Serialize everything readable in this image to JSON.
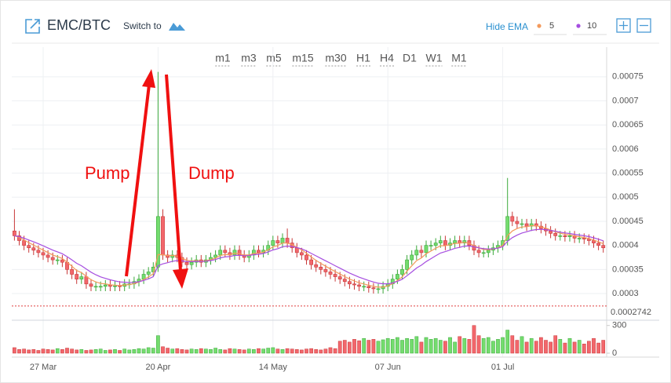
{
  "toolbar": {
    "symbol": "EMC/BTC",
    "switch": "Switch to",
    "hide_ema": "Hide EMA",
    "periods": [
      "m1",
      "m3",
      "m5",
      "m15",
      "m30",
      "H1",
      "H4",
      "D1",
      "W1",
      "M1"
    ],
    "active_period": "D1"
  },
  "chart_data": {
    "type": "candlestick",
    "categories": [
      null,
      null,
      null,
      null,
      null,
      null,
      "27 Mar",
      null,
      null,
      null,
      null,
      null,
      null,
      null,
      null,
      null,
      null,
      null,
      null,
      null,
      null,
      null,
      null,
      null,
      null,
      null,
      null,
      null,
      null,
      null,
      "20 Apr",
      null,
      null,
      null,
      null,
      null,
      null,
      null,
      null,
      null,
      null,
      null,
      null,
      null,
      null,
      null,
      null,
      null,
      null,
      null,
      null,
      null,
      null,
      null,
      "14 May",
      null,
      null,
      null,
      null,
      null,
      null,
      null,
      null,
      null,
      null,
      null,
      null,
      null,
      null,
      null,
      null,
      null,
      null,
      null,
      null,
      null,
      null,
      null,
      "07 Jun",
      null,
      null,
      null,
      null,
      null,
      null,
      null,
      null,
      null,
      null,
      null,
      null,
      null,
      null,
      null,
      null,
      null,
      null,
      null,
      null,
      null,
      null,
      null,
      "01 Jul",
      null,
      null,
      null,
      null,
      null,
      null,
      null,
      null,
      null,
      null,
      null,
      null,
      null,
      null,
      null,
      null,
      null,
      null,
      null,
      null,
      null
    ],
    "open": [
      0.00043,
      0.00042,
      0.00041,
      0.0004,
      0.000395,
      0.00039,
      0.000385,
      0.00038,
      0.000375,
      0.00037,
      0.00037,
      0.000365,
      0.00035,
      0.00034,
      0.00033,
      0.000335,
      0.00032,
      0.000315,
      0.000315,
      0.000315,
      0.000318,
      0.000315,
      0.000316,
      0.000315,
      0.00032,
      0.00032,
      0.000325,
      0.00033,
      0.00034,
      0.000345,
      0.000355,
      0.00046,
      0.00038,
      0.000375,
      0.00038,
      0.000375,
      0.000365,
      0.00036,
      0.000365,
      0.00037,
      0.000365,
      0.00037,
      0.000375,
      0.00038,
      0.00039,
      0.000385,
      0.00038,
      0.00039,
      0.00038,
      0.000375,
      0.00038,
      0.00039,
      0.000385,
      0.00039,
      0.0004,
      0.00041,
      0.000405,
      0.000415,
      0.000405,
      0.000395,
      0.000385,
      0.00038,
      0.00037,
      0.00036,
      0.000355,
      0.00035,
      0.000345,
      0.00034,
      0.000335,
      0.00033,
      0.000325,
      0.00032,
      0.000318,
      0.000315,
      0.000315,
      0.000312,
      0.00031,
      0.00031,
      0.000315,
      0.00032,
      0.00033,
      0.00034,
      0.00035,
      0.00037,
      0.00038,
      0.00039,
      0.000385,
      0.0004,
      0.0004,
      0.000405,
      0.00041,
      0.0004,
      0.000405,
      0.00041,
      0.000405,
      0.00041,
      0.0004,
      0.00039,
      0.000385,
      0.000385,
      0.00039,
      0.000395,
      0.0004,
      0.00041,
      0.00046,
      0.00045,
      0.000445,
      0.000445,
      0.00044,
      0.000445,
      0.00044,
      0.000435,
      0.00043,
      0.000425,
      0.00042,
      0.00042,
      0.000418,
      0.00042,
      0.000415,
      0.000415,
      0.000413,
      0.00041,
      0.000405,
      0.0004
    ],
    "high": [
      0.000475,
      0.00043,
      0.00042,
      0.00041,
      0.000405,
      0.0004,
      0.000395,
      0.00039,
      0.000385,
      0.00038,
      0.00038,
      0.000375,
      0.00036,
      0.00035,
      0.000345,
      0.000345,
      0.00033,
      0.000325,
      0.000325,
      0.000328,
      0.000328,
      0.000326,
      0.000326,
      0.00033,
      0.00033,
      0.000335,
      0.00034,
      0.00035,
      0.000355,
      0.000365,
      0.00076,
      0.000475,
      0.00039,
      0.00039,
      0.00039,
      0.000385,
      0.000375,
      0.000375,
      0.00038,
      0.00038,
      0.00038,
      0.000385,
      0.00039,
      0.0004,
      0.0004,
      0.000395,
      0.0004,
      0.0004,
      0.00039,
      0.00039,
      0.0004,
      0.0004,
      0.0004,
      0.00041,
      0.00042,
      0.00042,
      0.000425,
      0.000435,
      0.000415,
      0.000405,
      0.000395,
      0.00039,
      0.00038,
      0.00037,
      0.000365,
      0.00036,
      0.000355,
      0.00035,
      0.000345,
      0.00034,
      0.000335,
      0.00033,
      0.000328,
      0.000325,
      0.000325,
      0.000322,
      0.00032,
      0.000325,
      0.00033,
      0.00034,
      0.00035,
      0.00036,
      0.00038,
      0.00039,
      0.0004,
      0.0004,
      0.00041,
      0.00041,
      0.000415,
      0.00042,
      0.00042,
      0.000415,
      0.00042,
      0.00042,
      0.00042,
      0.00042,
      0.00041,
      0.0004,
      0.000395,
      0.0004,
      0.000405,
      0.00041,
      0.00042,
      0.00054,
      0.00047,
      0.00046,
      0.000455,
      0.000455,
      0.000455,
      0.000455,
      0.00045,
      0.000445,
      0.00044,
      0.000435,
      0.00043,
      0.00043,
      0.00043,
      0.00043,
      0.000425,
      0.000425,
      0.000423,
      0.00042,
      0.000415,
      0.00041
    ],
    "low": [
      0.00041,
      0.0004,
      0.00039,
      0.000385,
      0.00038,
      0.000375,
      0.00037,
      0.000365,
      0.00036,
      0.00036,
      0.000355,
      0.00034,
      0.00033,
      0.00032,
      0.00032,
      0.00031,
      0.000305,
      0.000305,
      0.000305,
      0.000305,
      0.000305,
      0.000305,
      0.000305,
      0.000305,
      0.00031,
      0.00031,
      0.000315,
      0.00032,
      0.00033,
      0.000335,
      0.000345,
      0.00037,
      0.000365,
      0.000365,
      0.000365,
      0.000355,
      0.00035,
      0.00035,
      0.000355,
      0.000355,
      0.000355,
      0.00036,
      0.000365,
      0.00037,
      0.000375,
      0.00037,
      0.00037,
      0.00037,
      0.000365,
      0.000365,
      0.00037,
      0.000375,
      0.000375,
      0.00038,
      0.00039,
      0.000395,
      0.000395,
      0.000395,
      0.000385,
      0.000375,
      0.00037,
      0.00036,
      0.00035,
      0.000345,
      0.00034,
      0.000335,
      0.00033,
      0.000325,
      0.00032,
      0.000315,
      0.00031,
      0.000308,
      0.000305,
      0.000305,
      0.000302,
      0.0003,
      0.0003,
      0.0003,
      0.000305,
      0.00031,
      0.00032,
      0.00033,
      0.00034,
      0.00036,
      0.00037,
      0.000375,
      0.000375,
      0.00039,
      0.00039,
      0.000395,
      0.00039,
      0.00039,
      0.000395,
      0.000395,
      0.000395,
      0.00039,
      0.00038,
      0.000375,
      0.000375,
      0.000375,
      0.00038,
      0.000385,
      0.00039,
      0.0004,
      0.00044,
      0.000435,
      0.000435,
      0.00043,
      0.00043,
      0.00043,
      0.000425,
      0.00042,
      0.000415,
      0.00041,
      0.00041,
      0.000408,
      0.000408,
      0.000405,
      0.000405,
      0.000403,
      0.0004,
      0.000395,
      0.00039,
      0.000385
    ],
    "close": [
      0.00042,
      0.00041,
      0.0004,
      0.000395,
      0.00039,
      0.000385,
      0.00038,
      0.000375,
      0.00037,
      0.00037,
      0.000365,
      0.00035,
      0.00034,
      0.00033,
      0.000335,
      0.00032,
      0.000315,
      0.000315,
      0.000315,
      0.000318,
      0.000315,
      0.000316,
      0.000315,
      0.00032,
      0.00032,
      0.000325,
      0.00033,
      0.00034,
      0.000345,
      0.000355,
      0.00046,
      0.00038,
      0.000375,
      0.00038,
      0.000375,
      0.000365,
      0.00036,
      0.000365,
      0.00037,
      0.000365,
      0.00037,
      0.000375,
      0.00038,
      0.00039,
      0.000385,
      0.00038,
      0.00039,
      0.00038,
      0.000375,
      0.00038,
      0.00039,
      0.000385,
      0.00039,
      0.0004,
      0.00041,
      0.000405,
      0.000415,
      0.000405,
      0.000395,
      0.000385,
      0.00038,
      0.00037,
      0.00036,
      0.000355,
      0.00035,
      0.000345,
      0.00034,
      0.000335,
      0.00033,
      0.000325,
      0.00032,
      0.000318,
      0.000315,
      0.000315,
      0.000312,
      0.00031,
      0.00031,
      0.000315,
      0.00032,
      0.00033,
      0.00034,
      0.00035,
      0.00037,
      0.00038,
      0.00039,
      0.000385,
      0.0004,
      0.0004,
      0.000405,
      0.00041,
      0.0004,
      0.000405,
      0.00041,
      0.000405,
      0.00041,
      0.0004,
      0.00039,
      0.000385,
      0.000385,
      0.00039,
      0.000395,
      0.0004,
      0.00041,
      0.00046,
      0.00045,
      0.000445,
      0.000445,
      0.00044,
      0.000445,
      0.00044,
      0.000435,
      0.00043,
      0.000425,
      0.00042,
      0.00042,
      0.000418,
      0.00042,
      0.000415,
      0.000415,
      0.000413,
      0.00041,
      0.000405,
      0.0004,
      0.000395
    ],
    "volume": [
      60,
      40,
      45,
      35,
      40,
      30,
      45,
      40,
      35,
      50,
      40,
      55,
      45,
      35,
      40,
      30,
      35,
      40,
      45,
      30,
      35,
      40,
      30,
      45,
      35,
      40,
      50,
      45,
      60,
      55,
      190,
      70,
      55,
      45,
      50,
      40,
      35,
      45,
      40,
      50,
      45,
      40,
      55,
      40,
      35,
      50,
      45,
      40,
      35,
      45,
      40,
      50,
      45,
      55,
      60,
      45,
      40,
      50,
      45,
      40,
      35,
      45,
      50,
      40,
      35,
      45,
      60,
      50,
      130,
      140,
      120,
      150,
      135,
      160,
      140,
      150,
      130,
      145,
      160,
      150,
      170,
      140,
      160,
      150,
      180,
      120,
      170,
      150,
      160,
      140,
      130,
      170,
      120,
      180,
      160,
      150,
      300,
      190,
      160,
      170,
      130,
      150,
      170,
      250,
      190,
      140,
      180,
      120,
      160,
      130,
      170,
      140,
      120,
      190,
      150,
      110,
      160,
      120,
      140,
      100,
      130,
      160,
      110,
      140
    ],
    "up_color": "#74dc6e",
    "down_color": "#f2676c",
    "ema": [
      {
        "period": 5,
        "color": "#f39a5c"
      },
      {
        "period": 10,
        "color": "#a64ee0"
      }
    ],
    "ylim": [
      0.000261,
      0.000766
    ],
    "yticks": [
      0.0003,
      0.00035,
      0.0004,
      0.00045,
      0.0005,
      0.00055,
      0.0006,
      0.00065,
      0.0007,
      0.00075
    ],
    "volume_ylim": [
      0,
      340
    ],
    "volume_yticks": [
      0,
      300
    ],
    "price_line": 0.0002742,
    "annotations": [
      "Pump",
      "Dump"
    ],
    "grid": true
  }
}
